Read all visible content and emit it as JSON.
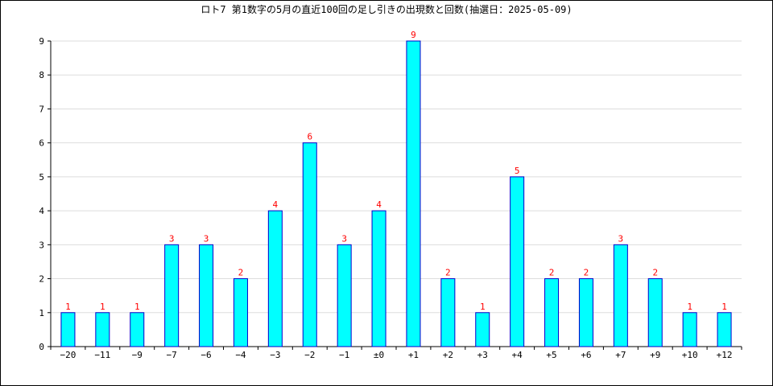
{
  "chart_data": {
    "type": "bar",
    "title": "ロト7 第1数字の5月の直近100回の足し引きの出現数と回数(抽選日：2025-05-09)",
    "xlabel": "",
    "ylabel": "",
    "categories": [
      "−20",
      "−11",
      "−9",
      "−7",
      "−6",
      "−4",
      "−3",
      "−2",
      "−1",
      "±0",
      "+1",
      "+2",
      "+3",
      "+4",
      "+5",
      "+6",
      "+7",
      "+9",
      "+10",
      "+12"
    ],
    "values": [
      1,
      1,
      1,
      3,
      3,
      2,
      4,
      6,
      3,
      4,
      9,
      2,
      1,
      5,
      2,
      2,
      3,
      2,
      1,
      1
    ],
    "ylim": [
      0,
      9
    ],
    "yticks": [
      0,
      1,
      2,
      3,
      4,
      5,
      6,
      7,
      8,
      9
    ],
    "grid": true,
    "legend": "none",
    "colors": {
      "bar_fill": "#00ffff",
      "bar_stroke": "#0000cc",
      "data_label": "#ff0000",
      "grid": "#dddddd",
      "axis": "#000000"
    }
  }
}
